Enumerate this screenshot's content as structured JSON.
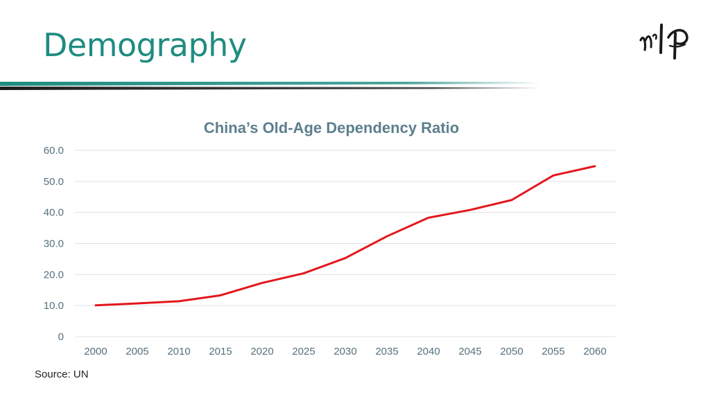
{
  "slide": {
    "title": "Demography",
    "source": "Source: UN",
    "logo_icon": "mp-calligraphy-logo-icon",
    "accent_color": "#1f8c80"
  },
  "chart_data": {
    "type": "line",
    "title": "China’s Old-Age Dependency Ratio",
    "xlabel": "",
    "ylabel": "",
    "x": [
      "2000",
      "2005",
      "2010",
      "2015",
      "2020",
      "2025",
      "2030",
      "2035",
      "2040",
      "2045",
      "2050",
      "2055",
      "2060"
    ],
    "series": [
      {
        "values": [
          10.1,
          10.7,
          11.4,
          13.3,
          17.3,
          20.4,
          25.3,
          32.3,
          38.3,
          40.8,
          44.0,
          51.9,
          54.9
        ],
        "color": "#e3161c"
      }
    ],
    "ylim": [
      0,
      60
    ],
    "yticks": [
      "0",
      "10.0",
      "20.0",
      "30.0",
      "40.0",
      "50.0",
      "60.0"
    ],
    "grid": true,
    "legend": "none"
  }
}
